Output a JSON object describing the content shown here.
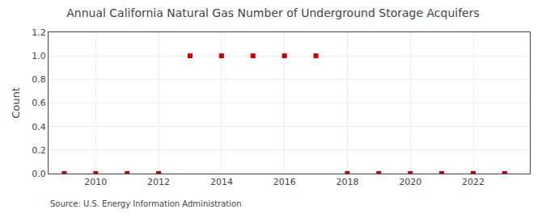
{
  "chart_data": {
    "type": "scatter",
    "title": "Annual California Natural Gas Number of Underground Storage Acquifers",
    "ylabel": "Count",
    "annotations": [
      "Source: U.S. Energy Information Administration"
    ],
    "x": [
      2009,
      2010,
      2011,
      2012,
      2013,
      2014,
      2015,
      2016,
      2017,
      2018,
      2019,
      2020,
      2021,
      2022,
      2023
    ],
    "values": [
      0,
      0,
      0,
      0,
      1,
      1,
      1,
      1,
      1,
      0,
      0,
      0,
      0,
      0,
      0
    ],
    "color": "#cc0000",
    "marker": "square",
    "xlim": [
      2008.5,
      2023.8
    ],
    "ylim": [
      0.0,
      1.2
    ],
    "xticks": [
      2010,
      2012,
      2014,
      2016,
      2018,
      2020,
      2022
    ],
    "yticks": [
      {
        "value": 0.0,
        "label": "0.0"
      },
      0.2,
      0.4,
      0.6,
      0.8,
      {
        "value": 1.0,
        "label": "1.0"
      },
      1.2
    ],
    "grid": true
  }
}
